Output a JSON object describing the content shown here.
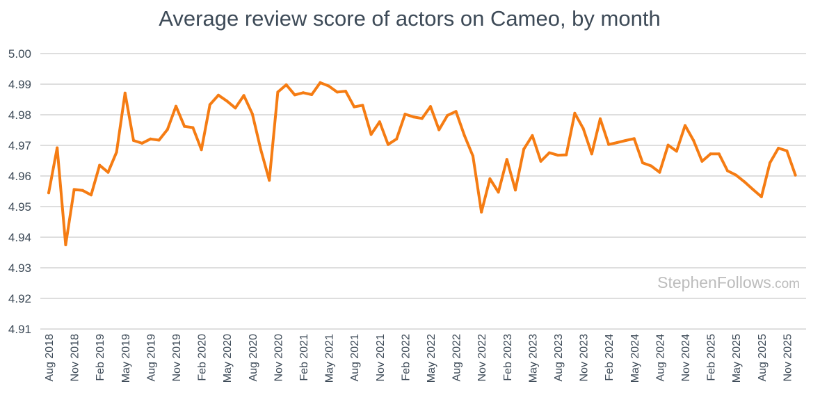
{
  "chart_data": {
    "type": "line",
    "title": "Average review score of actors on Cameo, by month",
    "xlabel": "",
    "ylabel": "",
    "ylim": [
      4.91,
      5.0
    ],
    "yticks": [
      "5.00",
      "4.99",
      "4.98",
      "4.97",
      "4.96",
      "4.95",
      "4.94",
      "4.93",
      "4.92",
      "4.91"
    ],
    "xtick_labels": [
      "Aug 2018",
      "Nov 2018",
      "Feb 2019",
      "May 2019",
      "Aug 2019",
      "Nov 2019",
      "Feb 2020",
      "May 2020",
      "Aug 2020",
      "Nov 2020",
      "Feb 2021",
      "May 2021",
      "Aug 2021",
      "Nov 2021",
      "Feb 2022",
      "May 2022",
      "Aug 2022",
      "Nov 2022",
      "Feb 2023",
      "May 2023",
      "Aug 2023",
      "Nov 2023",
      "Feb 2024",
      "May 2024",
      "Aug 2024",
      "Nov 2024",
      "Feb 2025",
      "May 2025",
      "Aug 2025",
      "Nov 2025"
    ],
    "grid": true,
    "series": [
      {
        "name": "Average review score",
        "color": "#f57c13",
        "x_start": "Aug 2018",
        "values": [
          4.9545,
          4.9692,
          4.9375,
          4.9556,
          4.9553,
          4.9538,
          4.9635,
          4.9612,
          4.9678,
          4.9871,
          4.9716,
          4.9707,
          4.9721,
          4.9717,
          4.9752,
          4.9828,
          4.9762,
          4.9758,
          4.9686,
          4.9833,
          4.9864,
          4.9845,
          4.9822,
          4.9863,
          4.9803,
          4.9686,
          4.9586,
          4.9874,
          4.9898,
          4.9865,
          4.9872,
          4.9866,
          4.9905,
          4.9894,
          4.9874,
          4.9877,
          4.9826,
          4.9831,
          4.9736,
          4.9777,
          4.9703,
          4.9721,
          4.9802,
          4.9793,
          4.9788,
          4.9827,
          4.9751,
          4.9798,
          4.9811,
          4.9732,
          4.9665,
          4.9482,
          4.9591,
          4.9547,
          4.9654,
          4.9554,
          4.9688,
          4.9732,
          4.9648,
          4.9676,
          4.9668,
          4.9669,
          4.9805,
          4.9755,
          4.9672,
          4.9787,
          4.9703,
          4.9709,
          4.9716,
          4.9722,
          4.9643,
          4.9633,
          4.9612,
          4.9701,
          4.9681,
          4.9765,
          4.9716,
          4.9648,
          4.9672,
          4.9672,
          4.9617,
          4.9603,
          4.9581,
          4.9556,
          4.9532,
          4.9643,
          4.9691,
          4.9682,
          4.9603
        ]
      }
    ]
  },
  "watermark": {
    "brand": "StephenFollows",
    "suffix": ".com"
  }
}
